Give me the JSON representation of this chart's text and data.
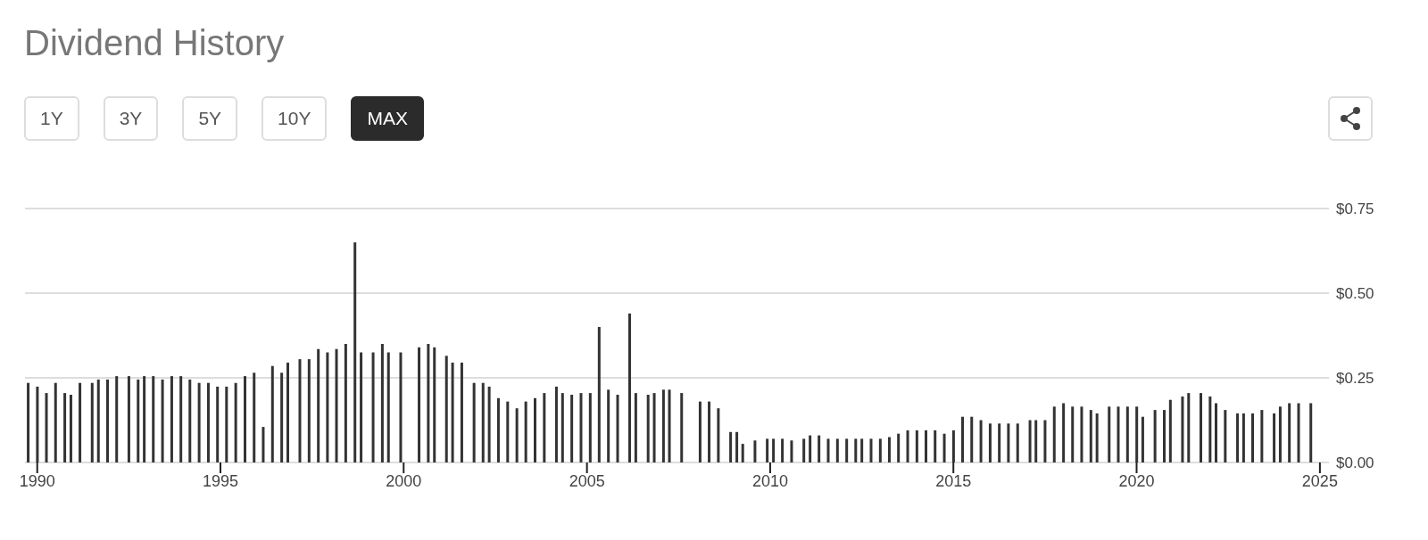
{
  "chart_data": {
    "type": "bar",
    "title": "Dividend History",
    "annotations": [
      "1Y",
      "3Y",
      "5Y",
      "10Y",
      "MAX"
    ],
    "x": [
      "1989-10",
      "1990-01",
      "1990-04",
      "1990-07",
      "1990-10",
      "1990-12",
      "1991-03",
      "1991-07",
      "1991-09",
      "1991-12",
      "1992-03",
      "1992-07",
      "1992-10",
      "1992-12",
      "1993-03",
      "1993-06",
      "1993-09",
      "1993-12",
      "1994-03",
      "1994-06",
      "1994-09",
      "1994-12",
      "1995-03",
      "1995-06",
      "1995-09",
      "1995-12",
      "1996-03",
      "1996-06",
      "1996-09",
      "1996-11",
      "1997-03",
      "1997-06",
      "1997-09",
      "1997-12",
      "1998-03",
      "1998-06",
      "1998-09",
      "1998-11",
      "1999-03",
      "1999-06",
      "1999-08",
      "1999-12",
      "2000-06",
      "2000-09",
      "2000-11",
      "2001-03",
      "2001-05",
      "2001-08",
      "2001-12",
      "2002-03",
      "2002-05",
      "2002-08",
      "2002-11",
      "2003-02",
      "2003-05",
      "2003-08",
      "2003-11",
      "2004-03",
      "2004-05",
      "2004-08",
      "2004-11",
      "2005-02",
      "2005-05",
      "2005-08",
      "2005-11",
      "2006-03",
      "2006-05",
      "2006-09",
      "2006-11",
      "2007-02",
      "2007-04",
      "2007-08",
      "2008-02",
      "2008-05",
      "2008-08",
      "2008-12",
      "2009-02",
      "2009-04",
      "2009-08",
      "2009-12",
      "2010-02",
      "2010-05",
      "2010-08",
      "2010-12",
      "2011-02",
      "2011-05",
      "2011-08",
      "2011-11",
      "2012-02",
      "2012-05",
      "2012-07",
      "2012-10",
      "2013-01",
      "2013-04",
      "2013-07",
      "2013-10",
      "2014-01",
      "2014-04",
      "2014-07",
      "2014-10",
      "2015-01",
      "2015-04",
      "2015-07",
      "2015-10",
      "2016-01",
      "2016-04",
      "2016-07",
      "2016-10",
      "2017-02",
      "2017-04",
      "2017-07",
      "2017-10",
      "2018-01",
      "2018-04",
      "2018-07",
      "2018-10",
      "2018-12",
      "2019-04",
      "2019-07",
      "2019-10",
      "2020-01",
      "2020-03",
      "2020-07",
      "2020-10",
      "2020-12",
      "2021-04",
      "2021-06",
      "2021-10",
      "2022-01",
      "2022-03",
      "2022-06",
      "2022-10",
      "2022-12",
      "2023-03",
      "2023-06",
      "2023-10",
      "2023-12",
      "2024-03",
      "2024-06",
      "2024-10"
    ],
    "values": [
      0.235,
      0.224,
      0.205,
      0.235,
      0.205,
      0.2,
      0.235,
      0.235,
      0.245,
      0.245,
      0.255,
      0.255,
      0.245,
      0.255,
      0.255,
      0.245,
      0.255,
      0.255,
      0.245,
      0.235,
      0.235,
      0.224,
      0.224,
      0.235,
      0.255,
      0.265,
      0.105,
      0.285,
      0.265,
      0.295,
      0.305,
      0.305,
      0.335,
      0.325,
      0.335,
      0.35,
      0.65,
      0.325,
      0.325,
      0.35,
      0.325,
      0.325,
      0.34,
      0.35,
      0.34,
      0.315,
      0.295,
      0.295,
      0.235,
      0.235,
      0.224,
      0.19,
      0.18,
      0.16,
      0.18,
      0.19,
      0.205,
      0.224,
      0.205,
      0.2,
      0.205,
      0.205,
      0.4,
      0.215,
      0.2,
      0.44,
      0.205,
      0.2,
      0.205,
      0.215,
      0.215,
      0.205,
      0.18,
      0.18,
      0.16,
      0.09,
      0.09,
      0.055,
      0.065,
      0.07,
      0.07,
      0.07,
      0.065,
      0.07,
      0.08,
      0.08,
      0.07,
      0.07,
      0.07,
      0.07,
      0.07,
      0.07,
      0.07,
      0.075,
      0.085,
      0.095,
      0.095,
      0.095,
      0.095,
      0.085,
      0.095,
      0.135,
      0.135,
      0.125,
      0.115,
      0.115,
      0.115,
      0.115,
      0.125,
      0.125,
      0.125,
      0.165,
      0.175,
      0.165,
      0.165,
      0.155,
      0.145,
      0.165,
      0.165,
      0.165,
      0.165,
      0.135,
      0.155,
      0.155,
      0.185,
      0.195,
      0.205,
      0.205,
      0.195,
      0.175,
      0.155,
      0.145,
      0.145,
      0.145,
      0.155,
      0.145,
      0.165,
      0.175,
      0.175,
      0.175
    ],
    "color": "#333333",
    "xlim": [
      "1989-09",
      "2025-04"
    ],
    "xticks": [
      "1990",
      "1995",
      "2000",
      "2005",
      "2010",
      "2015",
      "2020",
      "2025"
    ],
    "ylim": [
      0,
      0.75
    ],
    "yticks": [
      {
        "value": 0,
        "label": "$0.00"
      },
      {
        "value": 0.25,
        "label": "$0.25"
      },
      {
        "value": 0.5,
        "label": "$0.50"
      },
      {
        "value": 0.75,
        "label": "$0.75"
      }
    ],
    "grid": "y",
    "legend": false
  }
}
